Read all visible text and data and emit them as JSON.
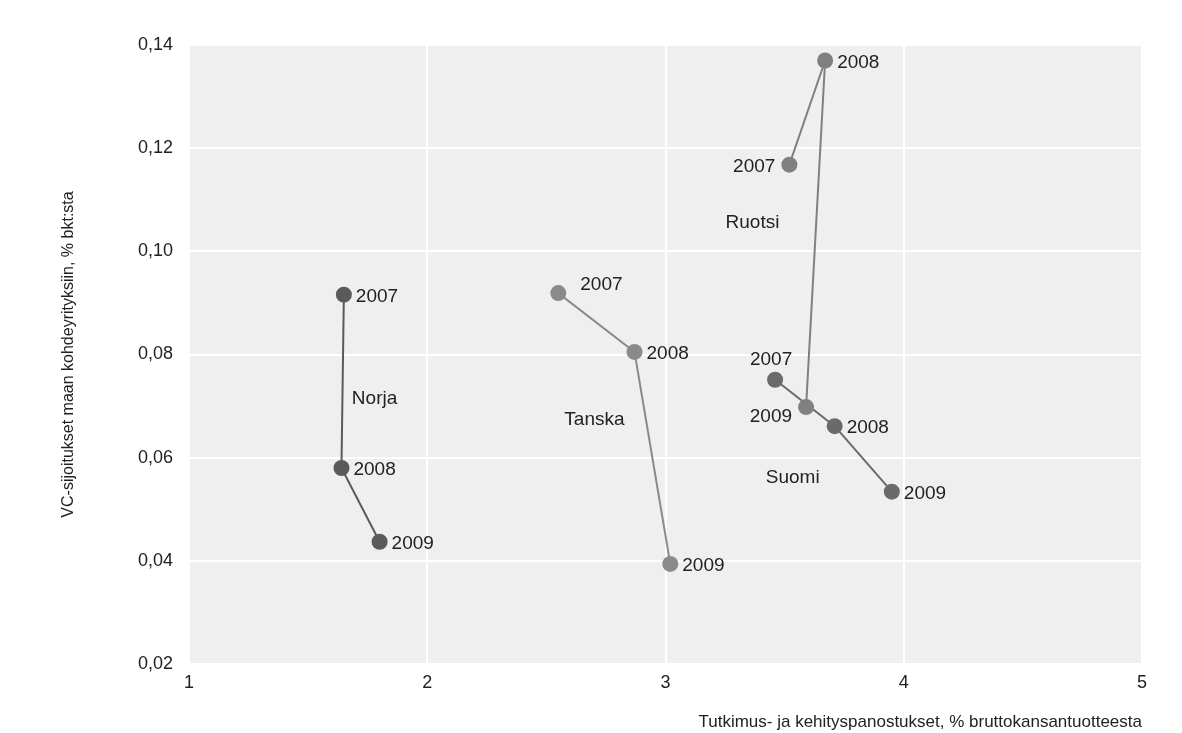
{
  "chart_data": {
    "type": "line",
    "xlabel": "Tutkimus- ja kehityspanostukset, % bruttokansantuotteesta",
    "ylabel": "VC-sijoitukset maan kohdeyrityksiin, % bkt:sta",
    "xlim": [
      1,
      5
    ],
    "xticks": [
      1,
      2,
      3,
      4,
      5
    ],
    "ylim": [
      0.02,
      0.14
    ],
    "yticks": [
      {
        "value": 0.02,
        "label": "0,02"
      },
      {
        "value": 0.04,
        "label": "0,04"
      },
      {
        "value": 0.06,
        "label": "0,06"
      },
      {
        "value": 0.08,
        "label": "0,08"
      },
      {
        "value": 0.1,
        "label": "0,10"
      },
      {
        "value": 0.12,
        "label": "0,12"
      },
      {
        "value": 0.14,
        "label": "0,14"
      }
    ],
    "grid": true,
    "legend": false,
    "marker": "circle",
    "line_style": "solid",
    "series": [
      {
        "name": "Norja",
        "color": "#5a5a5a",
        "x": [
          1.65,
          1.64,
          1.8
        ],
        "values": [
          0.0916,
          0.058,
          0.0437
        ]
      },
      {
        "name": "Tanska",
        "color": "#8a8a8a",
        "x": [
          2.55,
          2.87,
          3.02
        ],
        "values": [
          0.0919,
          0.0805,
          0.0394
        ]
      },
      {
        "name": "Ruotsi",
        "color": "#808080",
        "x": [
          3.52,
          3.67,
          3.59
        ],
        "values": [
          0.1168,
          0.137,
          0.0698
        ]
      },
      {
        "name": "Suomi",
        "color": "#6a6a6a",
        "x": [
          3.46,
          3.71,
          3.95
        ],
        "values": [
          0.0751,
          0.0661,
          0.0534
        ]
      }
    ],
    "annotations": [
      {
        "text": "2007",
        "x": 1.65,
        "y": 0.0916
      },
      {
        "text": "2008",
        "x": 1.64,
        "y": 0.058
      },
      {
        "text": "2009",
        "x": 1.8,
        "y": 0.0437
      },
      {
        "text": "2007",
        "x": 2.55,
        "y": 0.0919
      },
      {
        "text": "2008",
        "x": 2.87,
        "y": 0.0805
      },
      {
        "text": "2009",
        "x": 3.02,
        "y": 0.0394
      },
      {
        "text": "2007",
        "x": 3.52,
        "y": 0.1168
      },
      {
        "text": "2008",
        "x": 3.67,
        "y": 0.137
      },
      {
        "text": "2009",
        "x": 3.59,
        "y": 0.0698
      },
      {
        "text": "2007",
        "x": 3.46,
        "y": 0.0751
      },
      {
        "text": "2008",
        "x": 3.71,
        "y": 0.0661
      },
      {
        "text": "2009",
        "x": 3.95,
        "y": 0.0534
      }
    ]
  }
}
